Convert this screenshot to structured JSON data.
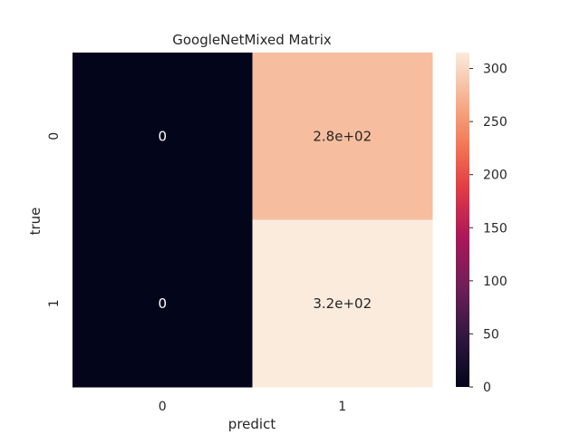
{
  "chart_data": {
    "type": "heatmap",
    "title": "GoogleNetMixed Matrix",
    "xlabel": "predict",
    "ylabel": "true",
    "x_categories": [
      "0",
      "1"
    ],
    "y_categories": [
      "0",
      "1"
    ],
    "values": [
      [
        0,
        280
      ],
      [
        0,
        320
      ]
    ],
    "annotations": [
      [
        "0",
        "2.8e+02"
      ],
      [
        "0",
        "3.2e+02"
      ]
    ],
    "colorbar": {
      "range": [
        0,
        315
      ],
      "ticks": [
        0,
        50,
        100,
        150,
        200,
        250,
        300
      ],
      "colormap": "rocket"
    }
  }
}
